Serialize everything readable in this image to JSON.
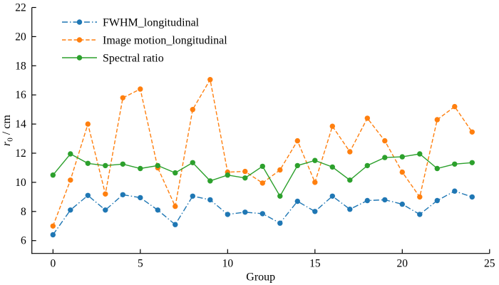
{
  "figure": {
    "background": "#ffffff",
    "axis_color": "#000000",
    "text_color": "#000000"
  },
  "chart_data": {
    "type": "line",
    "title": "",
    "xlabel": "Group",
    "ylabel": "r0 / cm",
    "ylabel_parts": {
      "symbol": "r",
      "subscript": "0",
      "unit": " / cm"
    },
    "xlim": [
      -1.21,
      25.0
    ],
    "ylim": [
      5.12,
      22.0
    ],
    "xticks": [
      0,
      5,
      10,
      15,
      20,
      25
    ],
    "yticks": [
      6,
      8,
      10,
      12,
      14,
      16,
      18,
      20,
      22
    ],
    "grid": false,
    "legend_position": "upper-left",
    "legend_frame": false,
    "x": [
      0,
      1,
      2,
      3,
      4,
      5,
      6,
      7,
      8,
      9,
      10,
      11,
      12,
      13,
      14,
      15,
      16,
      17,
      18,
      19,
      20,
      21,
      22,
      23,
      24
    ],
    "series": [
      {
        "name": "FWHM_longitudinal",
        "color": "#1f77b4",
        "line_style": "dashdot",
        "marker": "circle",
        "values": [
          6.4,
          8.1,
          9.1,
          8.1,
          9.15,
          8.95,
          8.1,
          7.1,
          9.05,
          8.8,
          7.8,
          7.95,
          7.85,
          7.2,
          8.7,
          8.0,
          9.05,
          8.15,
          8.75,
          8.8,
          8.5,
          7.8,
          8.75,
          9.4,
          9.0
        ]
      },
      {
        "name": "Image motion_longitudinal",
        "color": "#ff7f0e",
        "line_style": "dashed",
        "marker": "circle",
        "values": [
          7.0,
          10.15,
          14.0,
          9.2,
          15.8,
          16.4,
          11.0,
          8.35,
          15.0,
          17.05,
          10.7,
          10.75,
          9.95,
          10.85,
          12.85,
          10.0,
          13.85,
          12.1,
          14.4,
          12.85,
          10.7,
          9.0,
          14.3,
          15.2,
          13.45
        ]
      },
      {
        "name": "Spectral ratio",
        "color": "#2ca02c",
        "line_style": "solid",
        "marker": "circle",
        "values": [
          10.5,
          11.95,
          11.3,
          11.15,
          11.25,
          10.95,
          11.15,
          10.65,
          11.35,
          10.1,
          10.5,
          10.3,
          11.1,
          9.05,
          11.15,
          11.5,
          11.05,
          10.15,
          11.15,
          11.7,
          11.75,
          11.95,
          10.95,
          11.25,
          11.35
        ]
      }
    ]
  }
}
